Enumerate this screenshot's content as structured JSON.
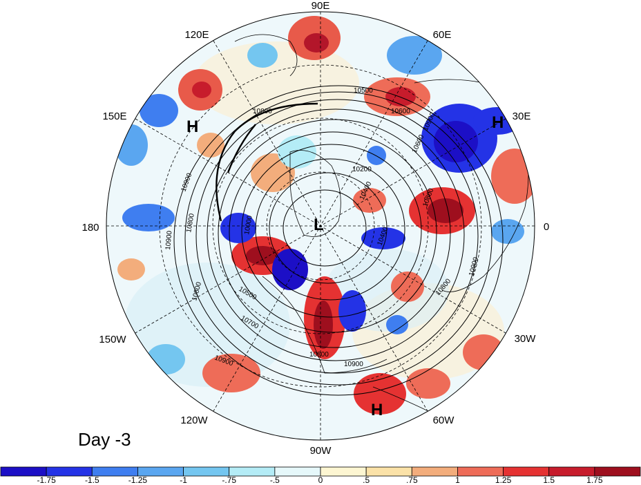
{
  "day_label": "Day -3",
  "longitude_labels": [
    "90E",
    "60E",
    "30E",
    "0",
    "30W",
    "60W",
    "90W",
    "120W",
    "150W",
    "180",
    "150E",
    "120E"
  ],
  "pressure_centers": [
    {
      "label": "L"
    },
    {
      "label": "H"
    },
    {
      "label": "H"
    },
    {
      "label": "H"
    }
  ],
  "contour_labels": [
    "10500",
    "10800",
    "10600",
    "10900",
    "10200",
    "10800",
    "10400",
    "10900",
    "10800",
    "10500",
    "10700",
    "10800",
    "10900",
    "10900",
    "10800",
    "10900",
    "10800",
    "10600",
    "10000",
    "10900",
    "10400"
  ],
  "colorbar": {
    "ticks": [
      "-1.75",
      "-1.5",
      "-1.25",
      "-1",
      "-.75",
      "-.5",
      "0",
      ".5",
      ".75",
      "1",
      "1.25",
      "1.5",
      "1.75"
    ],
    "colors": [
      "#1c0fc6",
      "#2433e6",
      "#3f7ef0",
      "#5aa6f0",
      "#74c6f0",
      "#b4ecf6",
      "#e6f8fa",
      "#fdf6d2",
      "#fbe2a8",
      "#f3ad7c",
      "#ee6c58",
      "#e53232",
      "#c71c2c",
      "#9e0f1e"
    ]
  }
}
